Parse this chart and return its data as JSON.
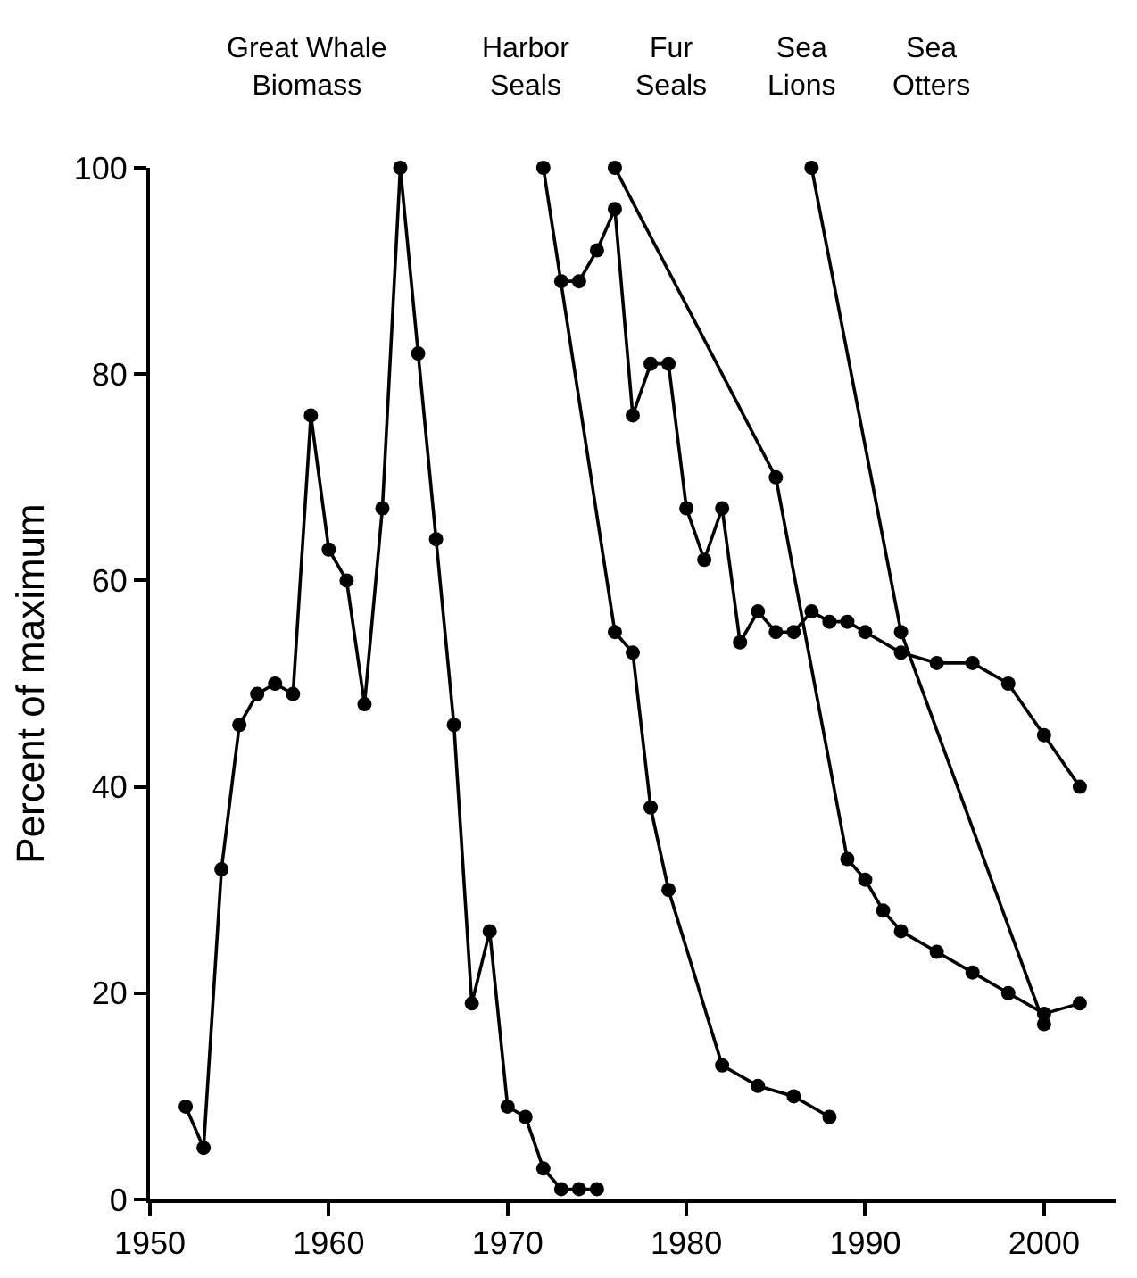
{
  "chart_data": {
    "type": "line",
    "ylabel": "Percent of maximum",
    "annotations": [
      "Great Whale\nBiomass",
      "Harbor\nSeals",
      "Fur\nSeals",
      "Sea\nLions",
      "Sea\nOtters"
    ],
    "series": [
      {
        "color": "#000000",
        "x": [
          1952,
          1953,
          1954,
          1955,
          1956,
          1957,
          1958,
          1959,
          1960,
          1961,
          1962,
          1963,
          1964,
          1965,
          1966,
          1967,
          1968,
          1969,
          1970,
          1971,
          1972,
          1973,
          1974,
          1975
        ],
        "values": [
          9,
          5,
          32,
          46,
          49,
          50,
          49,
          76,
          63,
          60,
          48,
          67,
          100,
          82,
          64,
          46,
          19,
          26,
          9,
          8,
          3,
          1,
          1,
          1
        ]
      },
      {
        "color": "#000000",
        "x": [
          1972,
          1976,
          1977,
          1978,
          1979,
          1982,
          1984,
          1986,
          1988
        ],
        "values": [
          100,
          55,
          53,
          38,
          30,
          13,
          11,
          10,
          8
        ]
      },
      {
        "color": "#000000",
        "x": [
          1973,
          1974,
          1975,
          1976,
          1977,
          1978,
          1979,
          1980,
          1981,
          1982,
          1983,
          1984,
          1985,
          1986,
          1987,
          1988,
          1989,
          1990,
          1992,
          1994,
          1996,
          1998,
          2000,
          2002
        ],
        "values": [
          89,
          89,
          92,
          96,
          76,
          81,
          81,
          67,
          62,
          67,
          54,
          57,
          55,
          55,
          57,
          56,
          56,
          55,
          53,
          52,
          52,
          50,
          45,
          40
        ]
      },
      {
        "color": "#000000",
        "x": [
          1976,
          1985,
          1989,
          1990,
          1991,
          1992,
          1994,
          1996,
          1998,
          2000,
          2002
        ],
        "values": [
          100,
          70,
          33,
          31,
          28,
          26,
          24,
          22,
          20,
          18,
          19
        ]
      },
      {
        "color": "#000000",
        "x": [
          1987,
          1992,
          2000
        ],
        "values": [
          100,
          55,
          17
        ]
      }
    ],
    "xlim": [
      1950,
      2004
    ],
    "xticks": [
      1950,
      1960,
      1970,
      1980,
      1990,
      2000
    ],
    "ylim": [
      0,
      100
    ],
    "yticks": [
      0,
      20,
      40,
      60,
      80,
      100
    ],
    "marker": "circle",
    "line_style": "solid"
  }
}
